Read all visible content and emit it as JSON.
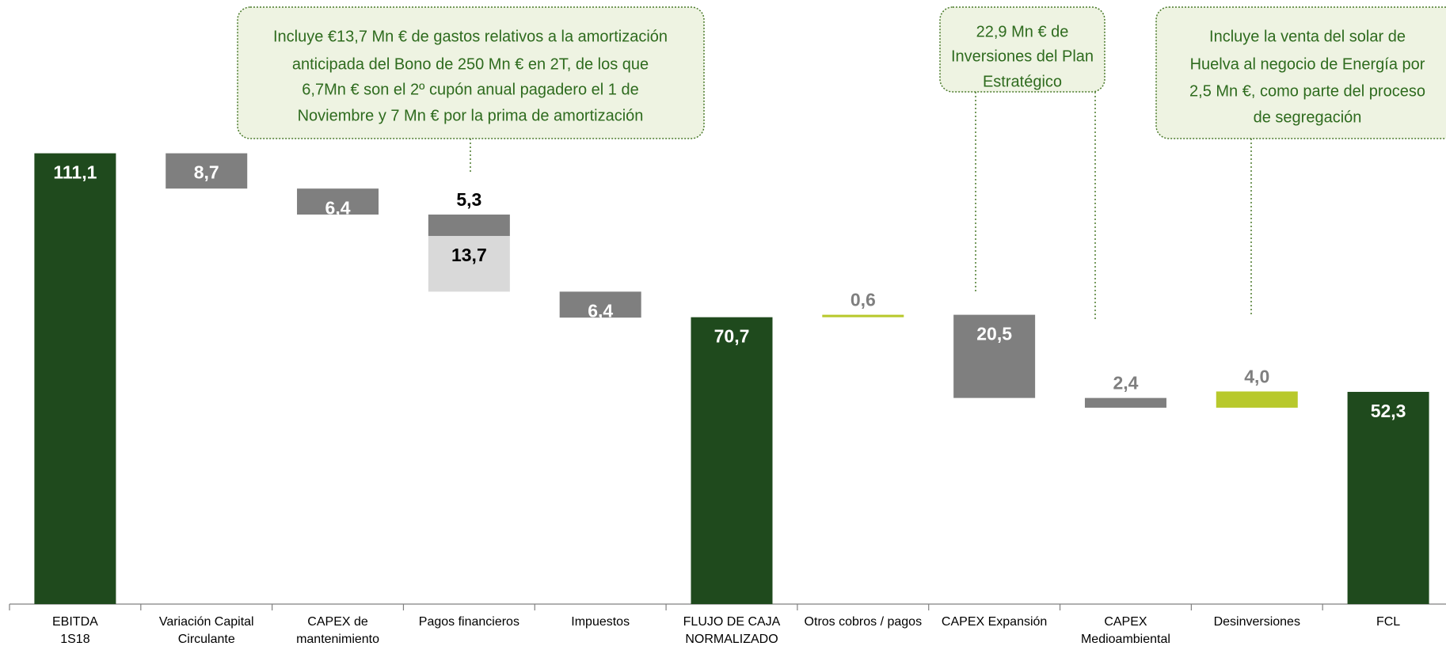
{
  "chart_data": {
    "type": "waterfall",
    "categories": [
      [
        "EBITDA",
        "1S18"
      ],
      [
        "Variación Capital",
        "Circulante"
      ],
      [
        "CAPEX de",
        "mantenimiento"
      ],
      [
        "Pagos financieros"
      ],
      [
        "Impuestos"
      ],
      [
        "FLUJO DE CAJA",
        "NORMALIZADO"
      ],
      [
        "Otros cobros / pagos"
      ],
      [
        "CAPEX Expansión"
      ],
      [
        "CAPEX",
        "Medioambiental"
      ],
      [
        "Desinversiones"
      ],
      [
        "FCL"
      ]
    ],
    "kinds": [
      "total",
      "delta",
      "delta",
      "delta",
      "delta",
      "total",
      "delta",
      "delta",
      "delta",
      "delta",
      "total"
    ],
    "values": [
      [
        111.1
      ],
      [
        -8.7
      ],
      [
        -6.4
      ],
      [
        -5.3,
        -13.7
      ],
      [
        -6.4
      ],
      [
        70.7
      ],
      [
        0.6
      ],
      [
        -20.5
      ],
      [
        -2.4
      ],
      [
        4.0
      ],
      [
        52.3
      ]
    ],
    "value_labels": [
      [
        "111,1"
      ],
      [
        "8,7"
      ],
      [
        "6,4"
      ],
      [
        "5,3",
        "13,7"
      ],
      [
        "6,4"
      ],
      [
        "70,7"
      ],
      [
        "0,6"
      ],
      [
        "20,5"
      ],
      [
        "2,4"
      ],
      [
        "4,0"
      ],
      [
        "52,3"
      ]
    ],
    "colors": [
      [
        "#1f4a1d"
      ],
      [
        "#7f7f7f"
      ],
      [
        "#7f7f7f"
      ],
      [
        "#7f7f7f",
        "#d9d9d9"
      ],
      [
        "#7f7f7f"
      ],
      [
        "#1f4a1d"
      ],
      [
        "#b8c92c"
      ],
      [
        "#7f7f7f"
      ],
      [
        "#7f7f7f"
      ],
      [
        "#b8c92c"
      ],
      [
        "#1f4a1d"
      ]
    ],
    "label_colors": [
      [
        "#ffffff"
      ],
      [
        "#ffffff"
      ],
      [
        "#ffffff"
      ],
      [
        "#000000",
        "#000000"
      ],
      [
        "#ffffff"
      ],
      [
        "#ffffff"
      ],
      [
        "#7f7f7f"
      ],
      [
        "#ffffff"
      ],
      [
        "#7f7f7f"
      ],
      [
        "#7f7f7f"
      ],
      [
        "#ffffff"
      ]
    ],
    "ylim": [
      0,
      120
    ],
    "annotations": [
      [
        "Incluye €13,7 Mn € de gastos relativos a la amortización",
        "anticipada del Bono de 250 Mn € en 2T, de los que",
        "6,7Mn € son el 2º cupón anual pagadero el 1 de",
        "Noviembre y 7 Mn € por la prima de amortización"
      ],
      [
        "22,9 Mn € de",
        "Inversiones del Plan",
        "Estratégico"
      ],
      [
        "Incluye la venta del solar de",
        "Huelva al negocio de Energía por",
        "2,5 Mn €, como parte del proceso",
        "de segregación"
      ]
    ]
  }
}
